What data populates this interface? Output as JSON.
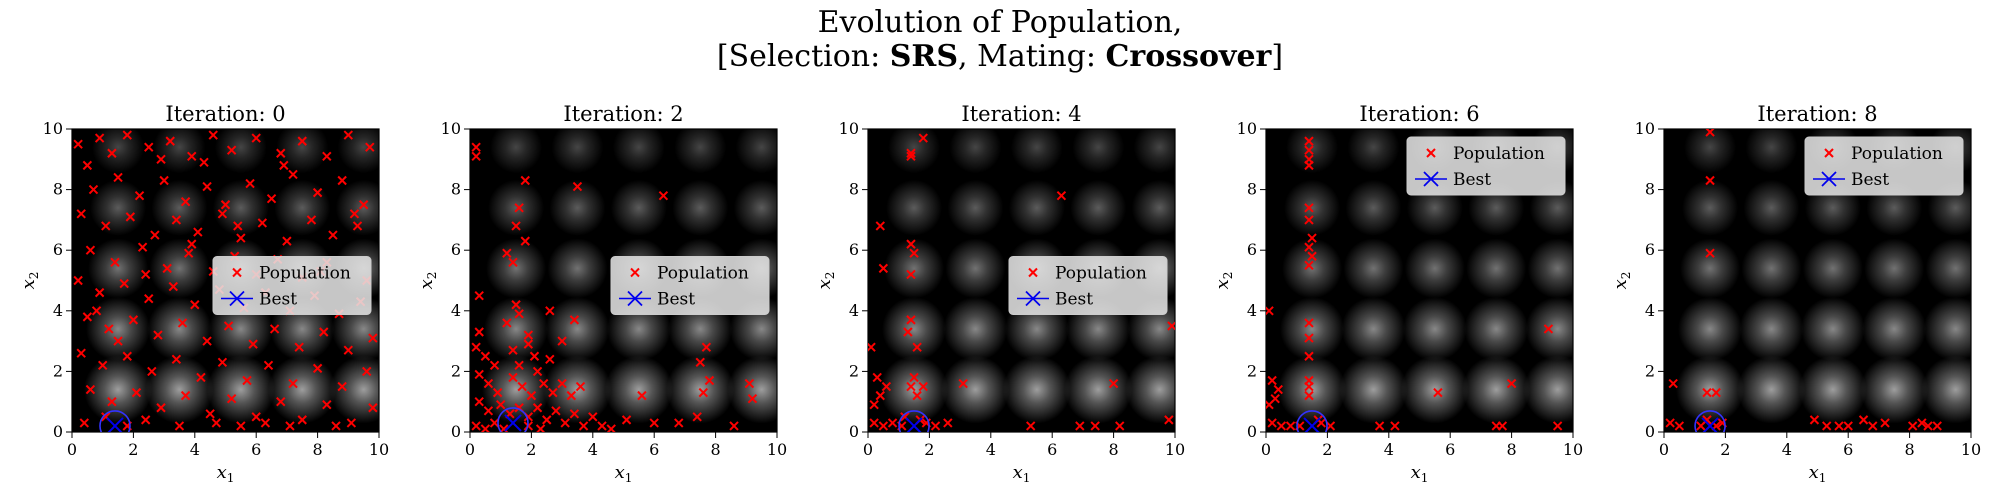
{
  "suptitle": {
    "line1": "Evolution of Population,",
    "line2_prefix": "[Selection: ",
    "selection": "SRS",
    "line2_mid": ", Mating: ",
    "mating": "Crossover",
    "line2_suffix": "]"
  },
  "colors": {
    "population": "#ff0000",
    "best": "#0000ee",
    "ring": "#3333ff"
  },
  "chart_data": [
    {
      "type": "scatter",
      "title": "Iteration: 0",
      "xlabel": "x_1",
      "ylabel": "x_2",
      "xlim": [
        0,
        10
      ],
      "ylim": [
        0,
        10
      ],
      "xticks": [
        0,
        2,
        4,
        6,
        8,
        10
      ],
      "yticks": [
        0,
        2,
        4,
        6,
        8,
        10
      ],
      "legend": {
        "position": "center-right",
        "entries": [
          "Population",
          "Best"
        ]
      },
      "best": [
        1.4,
        0.2
      ],
      "population": [
        [
          0.2,
          9.5
        ],
        [
          0.5,
          8.8
        ],
        [
          0.9,
          9.7
        ],
        [
          1.3,
          9.2
        ],
        [
          1.8,
          9.8
        ],
        [
          2.5,
          9.4
        ],
        [
          3.2,
          9.6
        ],
        [
          3.9,
          9.1
        ],
        [
          4.6,
          9.8
        ],
        [
          5.2,
          9.3
        ],
        [
          6.0,
          9.7
        ],
        [
          6.8,
          9.2
        ],
        [
          7.5,
          9.6
        ],
        [
          8.3,
          9.1
        ],
        [
          9.0,
          9.8
        ],
        [
          9.7,
          9.4
        ],
        [
          0.7,
          8.0
        ],
        [
          1.5,
          8.4
        ],
        [
          2.2,
          7.8
        ],
        [
          3.0,
          8.3
        ],
        [
          3.7,
          7.6
        ],
        [
          4.4,
          8.1
        ],
        [
          5.0,
          7.5
        ],
        [
          5.8,
          8.2
        ],
        [
          6.5,
          7.7
        ],
        [
          7.2,
          8.5
        ],
        [
          8.0,
          7.9
        ],
        [
          8.8,
          8.3
        ],
        [
          9.5,
          7.5
        ],
        [
          0.3,
          7.2
        ],
        [
          1.1,
          6.8
        ],
        [
          1.9,
          7.1
        ],
        [
          2.7,
          6.5
        ],
        [
          3.4,
          7.0
        ],
        [
          4.1,
          6.6
        ],
        [
          4.9,
          7.2
        ],
        [
          5.5,
          6.4
        ],
        [
          6.2,
          6.9
        ],
        [
          7.0,
          6.3
        ],
        [
          7.8,
          7.0
        ],
        [
          8.5,
          6.5
        ],
        [
          9.3,
          6.8
        ],
        [
          0.6,
          6.0
        ],
        [
          1.4,
          5.6
        ],
        [
          2.3,
          6.1
        ],
        [
          3.1,
          5.4
        ],
        [
          3.8,
          5.9
        ],
        [
          4.6,
          5.3
        ],
        [
          5.3,
          5.8
        ],
        [
          6.0,
          5.2
        ],
        [
          6.7,
          5.7
        ],
        [
          7.5,
          5.1
        ],
        [
          8.3,
          5.6
        ],
        [
          9.6,
          5.0
        ],
        [
          0.2,
          5.0
        ],
        [
          0.9,
          4.6
        ],
        [
          1.7,
          4.9
        ],
        [
          2.5,
          4.4
        ],
        [
          3.3,
          4.8
        ],
        [
          4.0,
          4.2
        ],
        [
          4.8,
          4.7
        ],
        [
          5.6,
          4.1
        ],
        [
          6.3,
          4.6
        ],
        [
          7.1,
          4.0
        ],
        [
          7.9,
          4.5
        ],
        [
          8.7,
          3.9
        ],
        [
          9.4,
          4.3
        ],
        [
          0.5,
          3.8
        ],
        [
          1.2,
          3.4
        ],
        [
          2.0,
          3.7
        ],
        [
          2.8,
          3.2
        ],
        [
          3.6,
          3.6
        ],
        [
          4.4,
          3.0
        ],
        [
          5.1,
          3.5
        ],
        [
          5.9,
          2.9
        ],
        [
          6.6,
          3.4
        ],
        [
          7.4,
          2.8
        ],
        [
          8.2,
          3.3
        ],
        [
          9.0,
          2.7
        ],
        [
          9.8,
          3.1
        ],
        [
          0.3,
          2.6
        ],
        [
          1.0,
          2.2
        ],
        [
          1.8,
          2.5
        ],
        [
          2.6,
          2.0
        ],
        [
          3.4,
          2.4
        ],
        [
          4.2,
          1.8
        ],
        [
          4.9,
          2.3
        ],
        [
          5.7,
          1.7
        ],
        [
          6.4,
          2.2
        ],
        [
          7.2,
          1.6
        ],
        [
          8.0,
          2.1
        ],
        [
          8.8,
          1.5
        ],
        [
          9.6,
          2.0
        ],
        [
          0.6,
          1.4
        ],
        [
          1.3,
          1.0
        ],
        [
          2.1,
          1.3
        ],
        [
          2.9,
          0.8
        ],
        [
          3.7,
          1.2
        ],
        [
          4.5,
          0.6
        ],
        [
          5.2,
          1.1
        ],
        [
          6.0,
          0.5
        ],
        [
          6.8,
          1.0
        ],
        [
          7.5,
          0.4
        ],
        [
          8.3,
          0.9
        ],
        [
          9.1,
          0.3
        ],
        [
          9.8,
          0.8
        ],
        [
          0.4,
          0.3
        ],
        [
          1.1,
          0.5
        ],
        [
          1.8,
          0.2
        ],
        [
          2.4,
          0.4
        ],
        [
          3.5,
          0.2
        ],
        [
          4.7,
          0.3
        ],
        [
          5.5,
          0.2
        ],
        [
          6.3,
          0.3
        ],
        [
          7.1,
          0.2
        ],
        [
          8.6,
          0.2
        ],
        [
          0.8,
          4.0
        ],
        [
          1.5,
          3.0
        ],
        [
          2.4,
          5.2
        ],
        [
          3.9,
          6.2
        ],
        [
          5.4,
          6.8
        ],
        [
          6.9,
          8.8
        ],
        [
          8.1,
          5.3
        ],
        [
          9.2,
          7.2
        ],
        [
          4.3,
          8.9
        ],
        [
          2.9,
          9.0
        ]
      ]
    },
    {
      "type": "scatter",
      "title": "Iteration: 2",
      "xlabel": "x_1",
      "ylabel": "x_2",
      "xlim": [
        0,
        10
      ],
      "ylim": [
        0,
        10
      ],
      "xticks": [
        0,
        2,
        4,
        6,
        8,
        10
      ],
      "yticks": [
        0,
        2,
        4,
        6,
        8,
        10
      ],
      "legend": {
        "position": "center-right",
        "entries": [
          "Population",
          "Best"
        ]
      },
      "best": [
        1.4,
        0.3
      ],
      "population": [
        [
          0.2,
          9.4
        ],
        [
          0.2,
          9.1
        ],
        [
          1.8,
          8.3
        ],
        [
          3.5,
          8.1
        ],
        [
          6.3,
          7.8
        ],
        [
          1.6,
          7.4
        ],
        [
          1.5,
          6.8
        ],
        [
          1.8,
          6.3
        ],
        [
          1.2,
          5.9
        ],
        [
          1.4,
          5.6
        ],
        [
          0.3,
          4.5
        ],
        [
          0.3,
          3.3
        ],
        [
          1.2,
          3.6
        ],
        [
          1.6,
          3.9
        ],
        [
          1.9,
          3.2
        ],
        [
          2.6,
          4.0
        ],
        [
          3.4,
          3.7
        ],
        [
          3.0,
          3.0
        ],
        [
          2.6,
          2.4
        ],
        [
          1.4,
          2.7
        ],
        [
          0.2,
          2.8
        ],
        [
          0.5,
          2.5
        ],
        [
          0.8,
          2.2
        ],
        [
          1.6,
          2.2
        ],
        [
          1.9,
          2.9
        ],
        [
          2.1,
          2.5
        ],
        [
          0.3,
          1.9
        ],
        [
          0.6,
          1.6
        ],
        [
          0.9,
          1.3
        ],
        [
          1.4,
          1.8
        ],
        [
          1.7,
          1.5
        ],
        [
          2.0,
          1.2
        ],
        [
          2.4,
          1.6
        ],
        [
          2.7,
          1.3
        ],
        [
          3.0,
          1.6
        ],
        [
          3.3,
          1.2
        ],
        [
          3.6,
          1.5
        ],
        [
          0.3,
          1.0
        ],
        [
          0.6,
          0.7
        ],
        [
          1.0,
          0.9
        ],
        [
          1.3,
          0.6
        ],
        [
          1.6,
          0.8
        ],
        [
          1.9,
          0.5
        ],
        [
          2.2,
          0.8
        ],
        [
          2.5,
          0.4
        ],
        [
          2.8,
          0.7
        ],
        [
          3.1,
          0.3
        ],
        [
          3.4,
          0.6
        ],
        [
          3.7,
          0.2
        ],
        [
          4.0,
          0.5
        ],
        [
          4.3,
          0.2
        ],
        [
          4.6,
          0.1
        ],
        [
          0.2,
          0.2
        ],
        [
          0.5,
          0.1
        ],
        [
          0.8,
          0.3
        ],
        [
          1.1,
          0.1
        ],
        [
          1.9,
          0.2
        ],
        [
          2.3,
          0.1
        ],
        [
          7.7,
          2.8
        ],
        [
          7.5,
          2.3
        ],
        [
          7.8,
          1.7
        ],
        [
          7.6,
          1.3
        ],
        [
          9.1,
          1.6
        ],
        [
          9.2,
          1.1
        ],
        [
          5.6,
          1.2
        ],
        [
          6.0,
          0.3
        ],
        [
          5.1,
          0.4
        ],
        [
          6.8,
          0.3
        ],
        [
          7.4,
          0.5
        ],
        [
          8.6,
          0.2
        ],
        [
          1.5,
          4.2
        ],
        [
          2.2,
          2.0
        ]
      ]
    },
    {
      "type": "scatter",
      "title": "Iteration: 4",
      "xlabel": "x_1",
      "ylabel": "x_2",
      "xlim": [
        0,
        10
      ],
      "ylim": [
        0,
        10
      ],
      "xticks": [
        0,
        2,
        4,
        6,
        8,
        10
      ],
      "yticks": [
        0,
        2,
        4,
        6,
        8,
        10
      ],
      "legend": {
        "position": "center-right",
        "entries": [
          "Population",
          "Best"
        ]
      },
      "best": [
        1.5,
        0.2
      ],
      "population": [
        [
          1.8,
          9.7
        ],
        [
          1.4,
          9.2
        ],
        [
          1.4,
          9.1
        ],
        [
          6.3,
          7.8
        ],
        [
          0.4,
          6.8
        ],
        [
          1.4,
          6.2
        ],
        [
          1.5,
          5.9
        ],
        [
          1.4,
          5.2
        ],
        [
          0.5,
          5.4
        ],
        [
          1.4,
          3.7
        ],
        [
          1.3,
          3.3
        ],
        [
          1.6,
          2.8
        ],
        [
          0.1,
          2.8
        ],
        [
          0.3,
          1.8
        ],
        [
          0.6,
          1.5
        ],
        [
          0.4,
          1.2
        ],
        [
          0.2,
          0.9
        ],
        [
          1.5,
          1.8
        ],
        [
          1.4,
          1.5
        ],
        [
          1.8,
          1.5
        ],
        [
          1.6,
          1.2
        ],
        [
          3.1,
          1.6
        ],
        [
          0.2,
          0.3
        ],
        [
          0.5,
          0.2
        ],
        [
          0.8,
          0.3
        ],
        [
          1.1,
          0.2
        ],
        [
          1.9,
          0.3
        ],
        [
          2.2,
          0.2
        ],
        [
          2.6,
          0.3
        ],
        [
          5.3,
          0.2
        ],
        [
          6.9,
          0.2
        ],
        [
          7.4,
          0.2
        ],
        [
          8.0,
          1.6
        ],
        [
          8.2,
          0.2
        ],
        [
          9.9,
          3.5
        ],
        [
          9.8,
          0.4
        ],
        [
          1.7,
          0.4
        ],
        [
          1.2,
          0.5
        ]
      ]
    },
    {
      "type": "scatter",
      "title": "Iteration: 6",
      "xlabel": "x_1",
      "ylabel": "x_2",
      "xlim": [
        0,
        10
      ],
      "ylim": [
        0,
        10
      ],
      "xticks": [
        0,
        2,
        4,
        6,
        8,
        10
      ],
      "yticks": [
        0,
        2,
        4,
        6,
        8,
        10
      ],
      "legend": {
        "position": "upper-right",
        "entries": [
          "Population",
          "Best"
        ]
      },
      "best": [
        1.5,
        0.2
      ],
      "population": [
        [
          1.4,
          9.6
        ],
        [
          1.4,
          9.3
        ],
        [
          1.4,
          9.0
        ],
        [
          1.4,
          8.8
        ],
        [
          1.4,
          7.4
        ],
        [
          1.4,
          7.0
        ],
        [
          1.5,
          6.4
        ],
        [
          1.4,
          6.1
        ],
        [
          1.5,
          5.8
        ],
        [
          1.4,
          5.5
        ],
        [
          0.1,
          4.0
        ],
        [
          1.4,
          3.6
        ],
        [
          1.4,
          3.1
        ],
        [
          1.4,
          2.5
        ],
        [
          1.4,
          1.7
        ],
        [
          1.4,
          1.5
        ],
        [
          1.4,
          1.2
        ],
        [
          0.2,
          1.7
        ],
        [
          0.4,
          1.4
        ],
        [
          0.3,
          1.1
        ],
        [
          0.1,
          0.9
        ],
        [
          0.2,
          0.3
        ],
        [
          0.5,
          0.2
        ],
        [
          0.8,
          0.2
        ],
        [
          1.1,
          0.2
        ],
        [
          1.8,
          0.3
        ],
        [
          2.1,
          0.2
        ],
        [
          3.7,
          0.2
        ],
        [
          4.2,
          0.2
        ],
        [
          5.6,
          1.3
        ],
        [
          7.5,
          0.2
        ],
        [
          7.7,
          0.2
        ],
        [
          8.0,
          1.6
        ],
        [
          9.2,
          3.4
        ],
        [
          9.5,
          0.2
        ],
        [
          1.7,
          0.4
        ]
      ]
    },
    {
      "type": "scatter",
      "title": "Iteration: 8",
      "xlabel": "x_1",
      "ylabel": "x_2",
      "xlim": [
        0,
        10
      ],
      "ylim": [
        0,
        10
      ],
      "xticks": [
        0,
        2,
        4,
        6,
        8,
        10
      ],
      "yticks": [
        0,
        2,
        4,
        6,
        8,
        10
      ],
      "legend": {
        "position": "upper-right",
        "entries": [
          "Population",
          "Best"
        ]
      },
      "best": [
        1.5,
        0.2
      ],
      "population": [
        [
          1.5,
          9.9
        ],
        [
          1.5,
          8.3
        ],
        [
          1.5,
          5.9
        ],
        [
          1.4,
          1.3
        ],
        [
          1.7,
          1.3
        ],
        [
          0.3,
          1.6
        ],
        [
          0.2,
          0.3
        ],
        [
          0.5,
          0.2
        ],
        [
          1.2,
          0.2
        ],
        [
          1.4,
          0.4
        ],
        [
          1.7,
          0.2
        ],
        [
          1.9,
          0.3
        ],
        [
          4.9,
          0.4
        ],
        [
          5.3,
          0.2
        ],
        [
          5.7,
          0.2
        ],
        [
          6.0,
          0.2
        ],
        [
          6.5,
          0.4
        ],
        [
          6.8,
          0.2
        ],
        [
          7.2,
          0.3
        ],
        [
          8.1,
          0.2
        ],
        [
          8.4,
          0.3
        ],
        [
          8.6,
          0.2
        ],
        [
          8.9,
          0.2
        ]
      ]
    }
  ]
}
